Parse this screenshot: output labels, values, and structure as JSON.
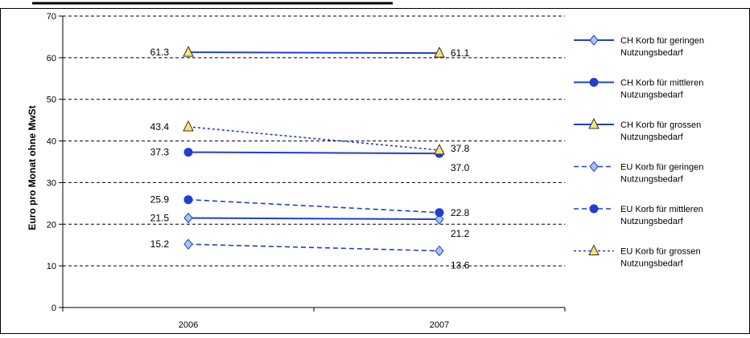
{
  "chart_data": {
    "type": "line",
    "title": "",
    "xlabel": "",
    "ylabel": "Euro pro Monat ohne MwSt",
    "ylim": [
      0,
      70
    ],
    "yticks": [
      "0",
      "10",
      "20",
      "30",
      "40",
      "50",
      "60",
      "70"
    ],
    "categories": [
      "2006",
      "2007"
    ],
    "grid": "horizontal dashed",
    "legend_position": "right",
    "series": [
      {
        "name": "CH Korb für geringen Nutzungsbedarf",
        "values": [
          21.5,
          21.2
        ],
        "labels": [
          "21.5",
          "21.2"
        ],
        "line": "solid",
        "marker": "diamond",
        "color": "#1F3FD1",
        "fill": "#A9C4F0"
      },
      {
        "name": "CH Korb für mittleren Nutzungsbedarf",
        "values": [
          37.3,
          37.0
        ],
        "labels": [
          "37.3",
          "37.0"
        ],
        "line": "solid",
        "marker": "circle",
        "color": "#1F3FD1",
        "fill": "#1F3FD1"
      },
      {
        "name": "CH Korb für grossen Nutzungsbedarf",
        "values": [
          61.3,
          61.1
        ],
        "labels": [
          "61.3",
          "61.1"
        ],
        "line": "solid",
        "marker": "triangle",
        "color": "#1F3FD1",
        "fill": "#F5E66E"
      },
      {
        "name": "EU Korb für geringen Nutzungsbedarf",
        "values": [
          15.2,
          13.6
        ],
        "labels": [
          "15.2",
          "13.6"
        ],
        "line": "dashed",
        "marker": "diamond",
        "color": "#1F3FD1",
        "fill": "#A9C4F0"
      },
      {
        "name": "EU Korb für mittleren Nutzungsbedarf",
        "values": [
          25.9,
          22.8
        ],
        "labels": [
          "25.9",
          "22.8"
        ],
        "line": "dashed",
        "marker": "circle",
        "color": "#1F3FD1",
        "fill": "#1F3FD1"
      },
      {
        "name": "EU Korb für grossen Nutzungsbedarf",
        "values": [
          43.4,
          37.8
        ],
        "labels": [
          "43.4",
          "37.8"
        ],
        "line": "dashed",
        "marker": "triangle",
        "color": "#1F3FD1",
        "fill": "#F5E66E"
      }
    ]
  },
  "legend": {
    "items": [
      {
        "line1": "CH Korb für geringen",
        "line2": "Nutzungsbedarf"
      },
      {
        "line1": "CH Korb für mittleren",
        "line2": "Nutzungsbedarf"
      },
      {
        "line1": "CH Korb für grossen",
        "line2": "Nutzungsbedarf"
      },
      {
        "line1": "EU Korb für geringen",
        "line2": "Nutzungsbedarf"
      },
      {
        "line1": "EU Korb für mittleren",
        "line2": "Nutzungsbedarf"
      },
      {
        "line1": "EU Korb für grossen",
        "line2": "Nutzungsbedarf"
      }
    ]
  }
}
